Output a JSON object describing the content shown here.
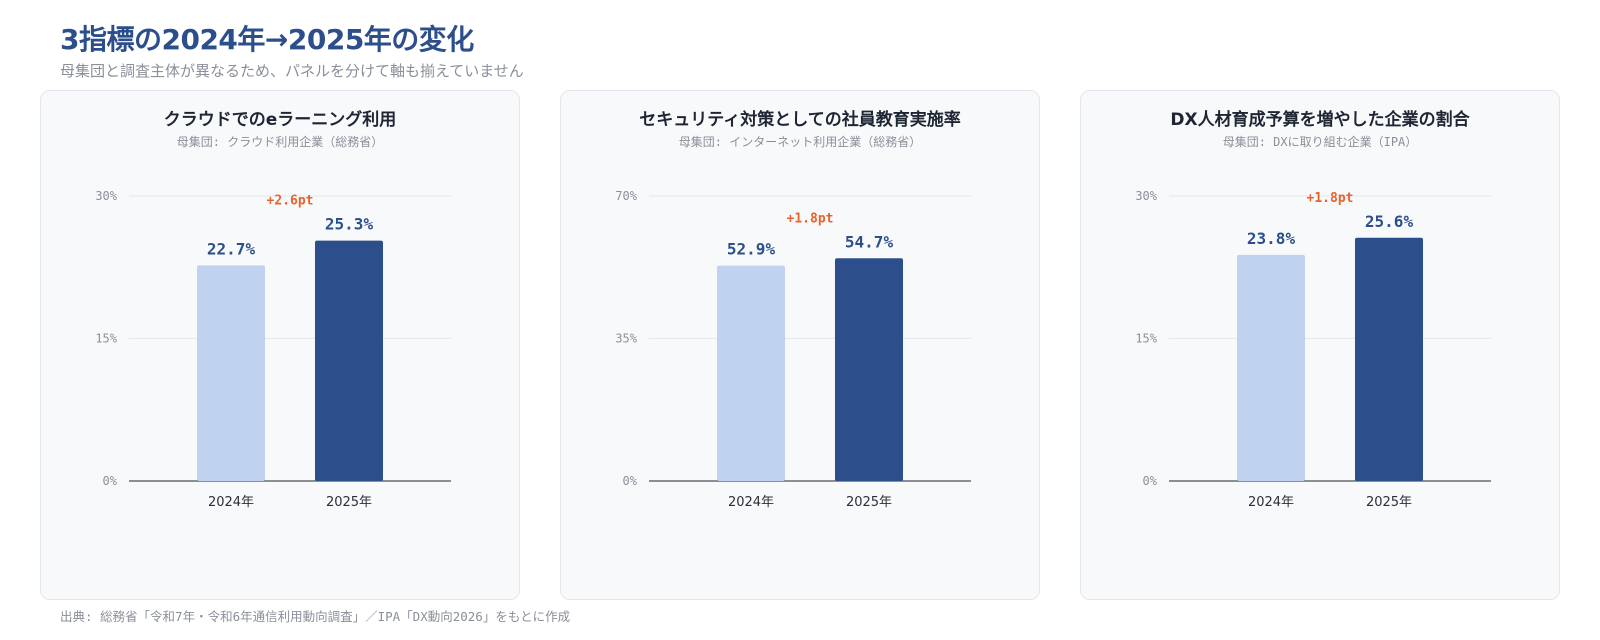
{
  "header": {
    "title": "3指標の2024年→2025年の変化",
    "subtitle": "母集団と調査主体が異なるため、パネルを分けて軸も揃えていません"
  },
  "colors": {
    "title": "#2c4f8c",
    "bar_2024": "#bfd2ef",
    "bar_2025": "#2c4f8c",
    "delta": "#e8632a",
    "value_label": "#2c4f8c",
    "grid": "#e6e8ec",
    "axis": "#4a4f57"
  },
  "chart_data": [
    {
      "type": "bar",
      "title": "クラウドでのeラーニング利用",
      "subtitle": "母集団: クラウド利用企業（総務省）",
      "categories": [
        "2024年",
        "2025年"
      ],
      "values": [
        22.7,
        25.3
      ],
      "value_labels": [
        "22.7%",
        "25.3%"
      ],
      "delta_label": "+2.6pt",
      "ylim": [
        0,
        30
      ],
      "yticks": [
        0,
        15,
        30
      ],
      "ytick_labels": [
        "0%",
        "15%",
        "30%"
      ],
      "grid": true
    },
    {
      "type": "bar",
      "title": "セキュリティ対策としての社員教育実施率",
      "subtitle": "母集団: インターネット利用企業（総務省）",
      "categories": [
        "2024年",
        "2025年"
      ],
      "values": [
        52.9,
        54.7
      ],
      "value_labels": [
        "52.9%",
        "54.7%"
      ],
      "delta_label": "+1.8pt",
      "ylim": [
        0,
        70
      ],
      "yticks": [
        0,
        35,
        70
      ],
      "ytick_labels": [
        "0%",
        "35%",
        "70%"
      ],
      "grid": true
    },
    {
      "type": "bar",
      "title": "DX人材育成予算を増やした企業の割合",
      "subtitle": "母集団: DXに取り組む企業（IPA）",
      "categories": [
        "2024年",
        "2025年"
      ],
      "values": [
        23.8,
        25.6
      ],
      "value_labels": [
        "23.8%",
        "25.6%"
      ],
      "delta_label": "+1.8pt",
      "ylim": [
        0,
        30
      ],
      "yticks": [
        0,
        15,
        30
      ],
      "ytick_labels": [
        "0%",
        "15%",
        "30%"
      ],
      "grid": true
    }
  ],
  "footer": {
    "source": "出典: 総務省「令和7年・令和6年通信利用動向調査」／IPA「DX動向2026」をもとに作成"
  }
}
